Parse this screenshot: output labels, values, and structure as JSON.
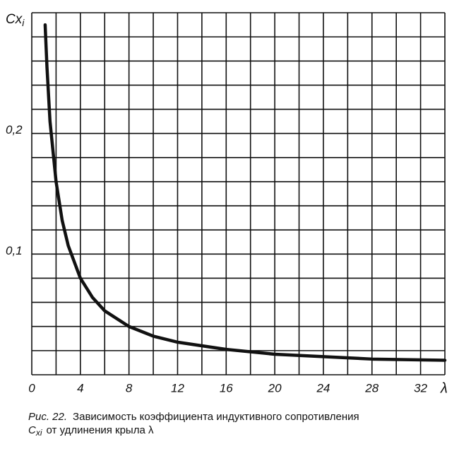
{
  "chart_data": {
    "type": "line",
    "ylabel": "Cx",
    "ylabel_sub": "i",
    "xlabel": "λ",
    "x": [
      1.1,
      1.25,
      1.5,
      2,
      2.5,
      3,
      4,
      5,
      6,
      8,
      10,
      12,
      16,
      20,
      24,
      28,
      34
    ],
    "values": [
      0.29,
      0.255,
      0.21,
      0.16,
      0.128,
      0.107,
      0.08,
      0.064,
      0.053,
      0.04,
      0.032,
      0.027,
      0.021,
      0.017,
      0.015,
      0.013,
      0.012
    ],
    "color": "#111111",
    "xlim": [
      0,
      34
    ],
    "ylim": [
      0,
      0.3
    ],
    "xticks": [
      0,
      4,
      8,
      12,
      16,
      20,
      24,
      28,
      32
    ],
    "yticks": [
      {
        "value": 0.1,
        "label": "0,1"
      },
      {
        "value": 0.2,
        "label": "0,2"
      }
    ],
    "xgrid": [
      0,
      2,
      4,
      6,
      8,
      10,
      12,
      14,
      16,
      18,
      20,
      22,
      24,
      26,
      28,
      30,
      32,
      34
    ],
    "ygrid": [
      0,
      0.02,
      0.04,
      0.06,
      0.08,
      0.1,
      0.12,
      0.14,
      0.16,
      0.18,
      0.2,
      0.22,
      0.24,
      0.26,
      0.28,
      0.3
    ],
    "grid": true
  },
  "caption": {
    "label": "Рис. 22.",
    "text": "Зависимость коэффициента индуктивного сопротивления",
    "symbol": "C",
    "symbol_sub": "xi",
    "tail": "от удлинения крыла λ"
  }
}
